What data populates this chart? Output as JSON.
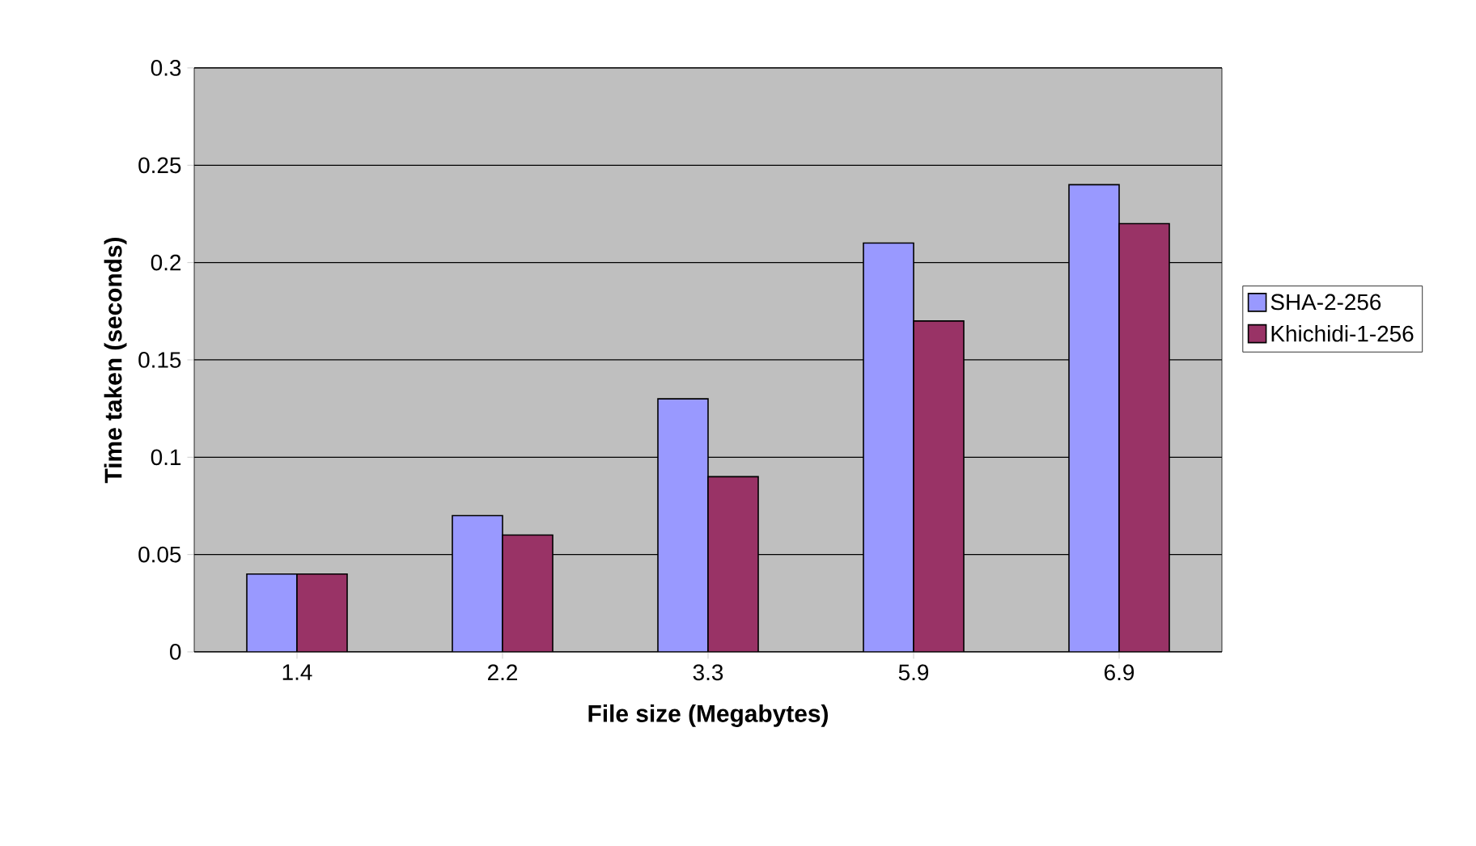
{
  "chart_data": {
    "type": "bar",
    "xlabel": "File size (Megabytes)",
    "ylabel": "Time taken (seconds)",
    "categories": [
      "1.4",
      "2.2",
      "3.3",
      "5.9",
      "6.9"
    ],
    "series": [
      {
        "name": "SHA-2-256",
        "color": "#9999ff",
        "values": [
          0.04,
          0.07,
          0.13,
          0.21,
          0.24
        ]
      },
      {
        "name": "Khichidi-1-256",
        "color": "#993366",
        "values": [
          0.04,
          0.06,
          0.09,
          0.17,
          0.22
        ]
      }
    ],
    "ylim": [
      0,
      0.3
    ],
    "yticks": [
      0,
      0.05,
      0.1,
      0.15,
      0.2,
      0.25,
      0.3
    ],
    "grid": "y",
    "legend": "right"
  }
}
